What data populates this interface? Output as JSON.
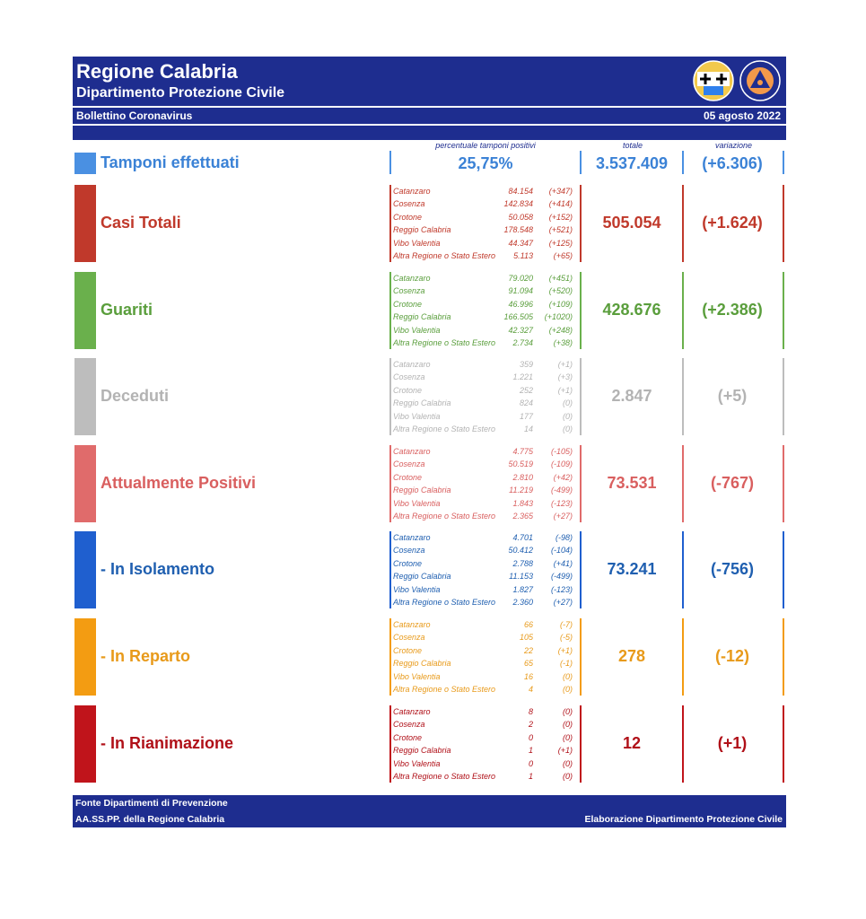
{
  "header": {
    "title": "Regione Calabria",
    "subtitle": "Dipartimento Protezione Civile",
    "bulletin": "Bollettino Coronavirus",
    "date": "05 agosto 2022",
    "logo_left": "regione-calabria-crest",
    "logo_right": "protezione-civile-emblem"
  },
  "columns": {
    "percent_label": "percentuale tamponi positivi",
    "total_label": "totale",
    "variation_label": "variazione"
  },
  "tamponi": {
    "label": "Tamponi effettuati",
    "percent": "25,75%",
    "total": "3.537.409",
    "variation": "(+6.306)",
    "color": "#4a90e2"
  },
  "sections": [
    {
      "label": "Casi Totali",
      "total": "505.054",
      "variation": "(+1.624)",
      "color": "#c0392b",
      "text_color": "#c0392b",
      "rows": [
        {
          "name": "Catanzaro",
          "value": "84.154",
          "delta": "(+347)"
        },
        {
          "name": "Cosenza",
          "value": "142.834",
          "delta": "(+414)"
        },
        {
          "name": "Crotone",
          "value": "50.058",
          "delta": "(+152)"
        },
        {
          "name": "Reggio Calabria",
          "value": "178.548",
          "delta": "(+521)"
        },
        {
          "name": "Vibo Valentia",
          "value": "44.347",
          "delta": "(+125)"
        },
        {
          "name": "Altra Regione o Stato Estero",
          "value": "5.113",
          "delta": "(+65)"
        }
      ]
    },
    {
      "label": "Guariti",
      "total": "428.676",
      "variation": "(+2.386)",
      "color": "#6ab04c",
      "text_color": "#5a9e3c",
      "rows": [
        {
          "name": "Catanzaro",
          "value": "79.020",
          "delta": "(+451)"
        },
        {
          "name": "Cosenza",
          "value": "91.094",
          "delta": "(+520)"
        },
        {
          "name": "Crotone",
          "value": "46.996",
          "delta": "(+109)"
        },
        {
          "name": "Reggio Calabria",
          "value": "166.505",
          "delta": "(+1020)"
        },
        {
          "name": "Vibo Valentia",
          "value": "42.327",
          "delta": "(+248)"
        },
        {
          "name": "Altra Regione o Stato Estero",
          "value": "2.734",
          "delta": "(+38)"
        }
      ]
    },
    {
      "label": "Deceduti",
      "total": "2.847",
      "variation": "(+5)",
      "color": "#bdbdbd",
      "text_color": "#b3b3b3",
      "rows": [
        {
          "name": "Catanzaro",
          "value": "359",
          "delta": "(+1)"
        },
        {
          "name": "Cosenza",
          "value": "1.221",
          "delta": "(+3)"
        },
        {
          "name": "Crotone",
          "value": "252",
          "delta": "(+1)"
        },
        {
          "name": "Reggio Calabria",
          "value": "824",
          "delta": "(0)"
        },
        {
          "name": "Vibo Valentia",
          "value": "177",
          "delta": "(0)"
        },
        {
          "name": "Altra Regione o Stato Estero",
          "value": "14",
          "delta": "(0)"
        }
      ]
    },
    {
      "label": "Attualmente Positivi",
      "total": "73.531",
      "variation": "(-767)",
      "color": "#e06b6b",
      "text_color": "#d95f5f",
      "rows": [
        {
          "name": "Catanzaro",
          "value": "4.775",
          "delta": "(-105)"
        },
        {
          "name": "Cosenza",
          "value": "50.519",
          "delta": "(-109)"
        },
        {
          "name": "Crotone",
          "value": "2.810",
          "delta": "(+42)"
        },
        {
          "name": "Reggio Calabria",
          "value": "11.219",
          "delta": "(-499)"
        },
        {
          "name": "Vibo Valentia",
          "value": "1.843",
          "delta": "(-123)"
        },
        {
          "name": "Altra Regione o Stato Estero",
          "value": "2.365",
          "delta": "(+27)"
        }
      ]
    },
    {
      "label": "- In Isolamento",
      "total": "73.241",
      "variation": "(-756)",
      "color": "#1f5fcf",
      "text_color": "#1f5fb0",
      "rows": [
        {
          "name": "Catanzaro",
          "value": "4.701",
          "delta": "(-98)"
        },
        {
          "name": "Cosenza",
          "value": "50.412",
          "delta": "(-104)"
        },
        {
          "name": "Crotone",
          "value": "2.788",
          "delta": "(+41)"
        },
        {
          "name": "Reggio Calabria",
          "value": "11.153",
          "delta": "(-499)"
        },
        {
          "name": "Vibo Valentia",
          "value": "1.827",
          "delta": "(-123)"
        },
        {
          "name": "Altra Regione o Stato Estero",
          "value": "2.360",
          "delta": "(+27)"
        }
      ]
    },
    {
      "label": "- In Reparto",
      "total": "278",
      "variation": "(-12)",
      "color": "#f39c12",
      "text_color": "#e89a1a",
      "rows": [
        {
          "name": "Catanzaro",
          "value": "66",
          "delta": "(-7)"
        },
        {
          "name": "Cosenza",
          "value": "105",
          "delta": "(-5)"
        },
        {
          "name": "Crotone",
          "value": "22",
          "delta": "(+1)"
        },
        {
          "name": "Reggio Calabria",
          "value": "65",
          "delta": "(-1)"
        },
        {
          "name": "Vibo Valentia",
          "value": "16",
          "delta": "(0)"
        },
        {
          "name": "Altra Regione o Stato Estero",
          "value": "4",
          "delta": "(0)"
        }
      ]
    },
    {
      "label": "- In Rianimazione",
      "total": "12",
      "variation": "(+1)",
      "color": "#c0141b",
      "text_color": "#b01018",
      "rows": [
        {
          "name": "Catanzaro",
          "value": "8",
          "delta": "(0)"
        },
        {
          "name": "Cosenza",
          "value": "2",
          "delta": "(0)"
        },
        {
          "name": "Crotone",
          "value": "0",
          "delta": "(0)"
        },
        {
          "name": "Reggio Calabria",
          "value": "1",
          "delta": "(+1)"
        },
        {
          "name": "Vibo Valentia",
          "value": "0",
          "delta": "(0)"
        },
        {
          "name": "Altra Regione o Stato Estero",
          "value": "1",
          "delta": "(0)"
        }
      ]
    }
  ],
  "footer": {
    "source_line1": "Fonte Dipartimenti di Prevenzione",
    "source_line2": "AA.SS.PP.  della Regione Calabria",
    "credit": "Elaborazione Dipartimento Protezione Civile"
  }
}
